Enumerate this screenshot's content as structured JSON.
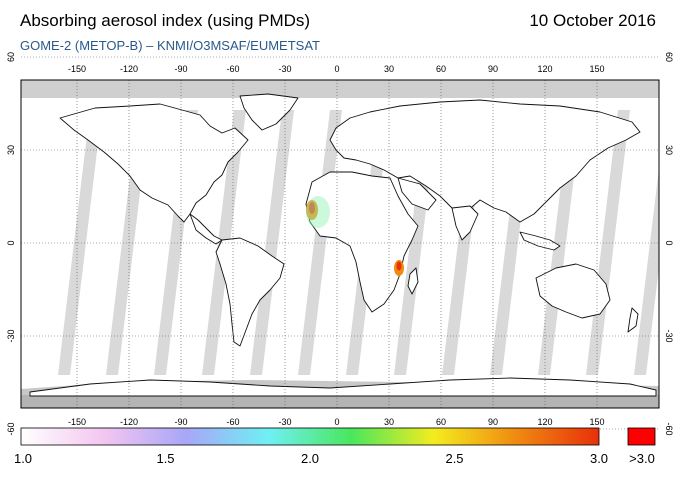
{
  "header": {
    "title": "Absorbing aerosol index (using PMDs)",
    "date": "10 October 2016",
    "subtitle": "GOME-2 (METOP-B)  –  KNMI/O3MSAF/EUMETSAT"
  },
  "map": {
    "lon_ticks": [
      -150,
      -120,
      -90,
      -60,
      -30,
      0,
      30,
      60,
      90,
      120,
      150
    ],
    "lat_ticks": [
      60,
      30,
      0,
      -30,
      -60
    ],
    "lon_labels": [
      "-150",
      "-120",
      "-90",
      "-60",
      "-30",
      "0",
      "30",
      "60",
      "90",
      "120",
      "150"
    ],
    "lat_labels": [
      "60",
      "30",
      "0",
      "-30",
      "-60"
    ]
  },
  "colorbar": {
    "labels": [
      "1.0",
      "1.5",
      "2.0",
      "2.5",
      "3.0"
    ],
    "overflow_label": ">3.0",
    "stops": [
      "#ffffff",
      "#f3c6f0",
      "#a8a6f8",
      "#6ff0f4",
      "#49e75c",
      "#f4ec1e",
      "#f08a10",
      "#e8300a"
    ],
    "overflow_color": "#ff0000"
  }
}
